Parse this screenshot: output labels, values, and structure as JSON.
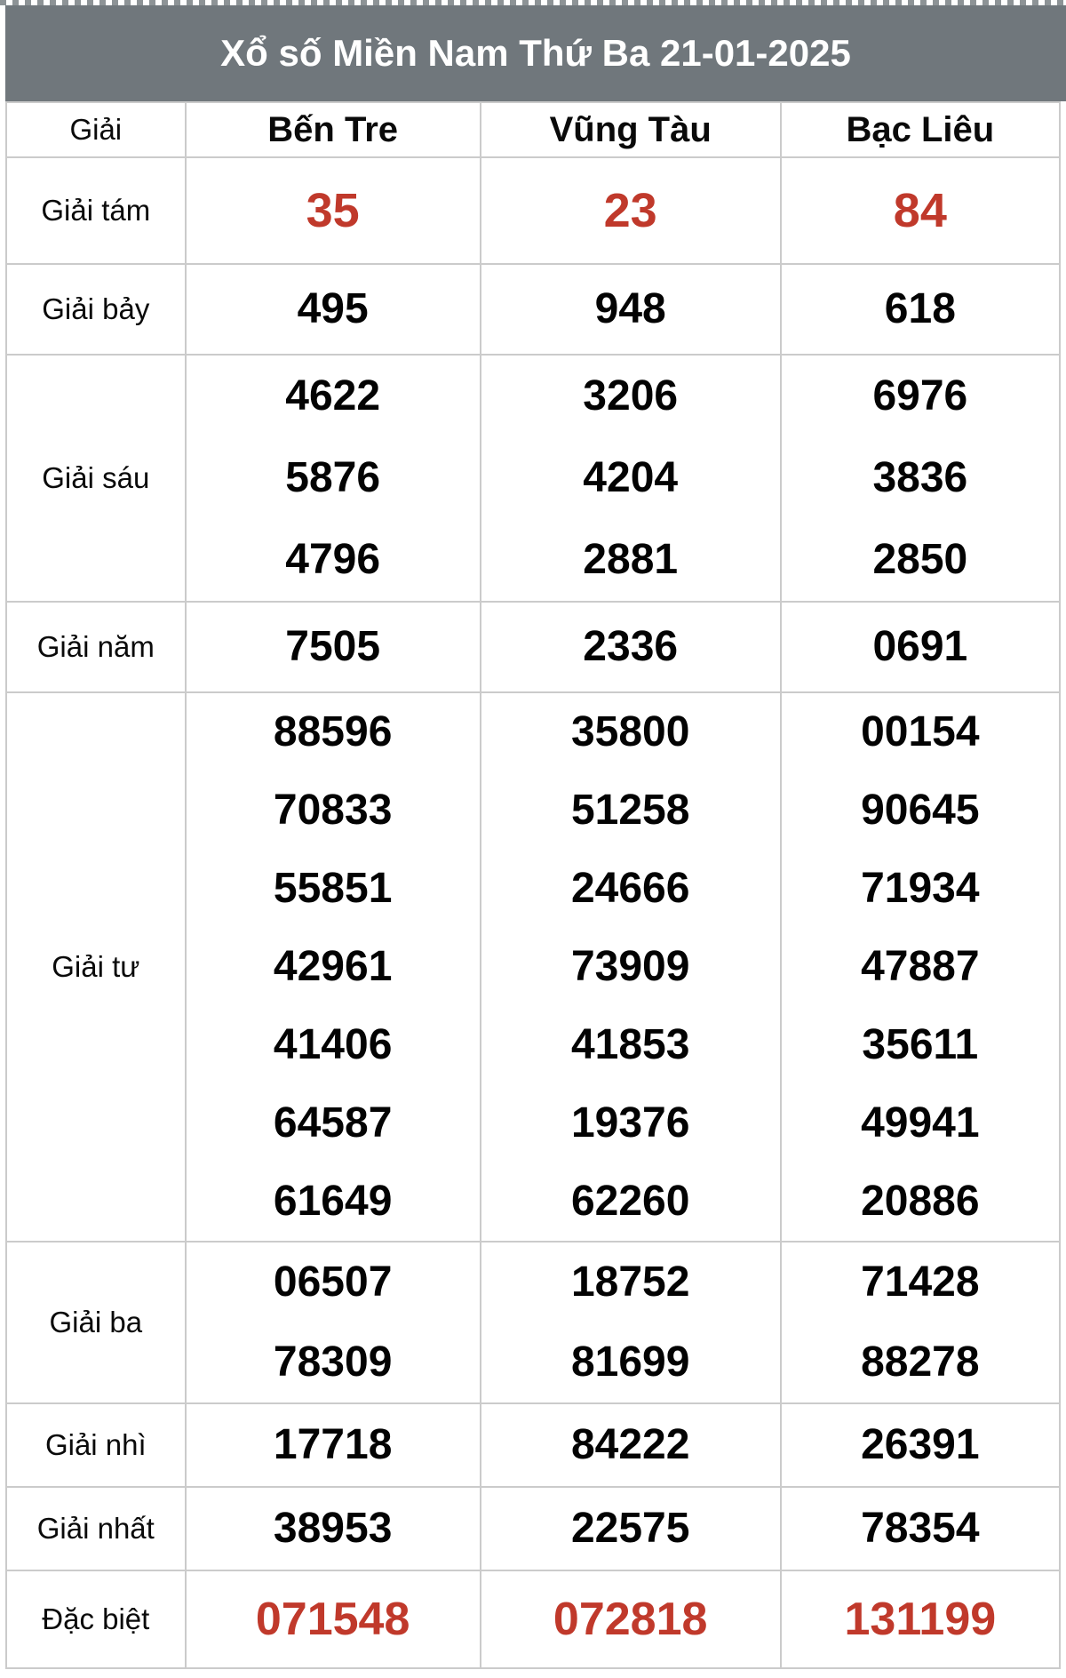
{
  "title": "Xổ số Miền Nam Thứ Ba 21-01-2025",
  "colors": {
    "header_bg": "#70777c",
    "highlight_red": "#c0392b",
    "border": "#cbcbcb"
  },
  "columns": [
    {
      "key": "giai",
      "label": "Giải"
    },
    {
      "key": "ben-tre",
      "label": "Bến Tre"
    },
    {
      "key": "vung-tau",
      "label": "Vũng Tàu"
    },
    {
      "key": "bac-lieu",
      "label": "Bạc Liêu"
    }
  ],
  "rows": [
    {
      "key": "tam",
      "label": "Giải tám",
      "red": true,
      "values": [
        [
          "35"
        ],
        [
          "23"
        ],
        [
          "84"
        ]
      ]
    },
    {
      "key": "bay",
      "label": "Giải bảy",
      "red": false,
      "values": [
        [
          "495"
        ],
        [
          "948"
        ],
        [
          "618"
        ]
      ]
    },
    {
      "key": "sau",
      "label": "Giải sáu",
      "red": false,
      "values": [
        [
          "4622",
          "5876",
          "4796"
        ],
        [
          "3206",
          "4204",
          "2881"
        ],
        [
          "6976",
          "3836",
          "2850"
        ]
      ]
    },
    {
      "key": "nam",
      "label": "Giải năm",
      "red": false,
      "values": [
        [
          "7505"
        ],
        [
          "2336"
        ],
        [
          "0691"
        ]
      ]
    },
    {
      "key": "tu",
      "label": "Giải tư",
      "red": false,
      "values": [
        [
          "88596",
          "70833",
          "55851",
          "42961",
          "41406",
          "64587",
          "61649"
        ],
        [
          "35800",
          "51258",
          "24666",
          "73909",
          "41853",
          "19376",
          "62260"
        ],
        [
          "00154",
          "90645",
          "71934",
          "47887",
          "35611",
          "49941",
          "20886"
        ]
      ]
    },
    {
      "key": "ba",
      "label": "Giải ba",
      "red": false,
      "values": [
        [
          "06507",
          "78309"
        ],
        [
          "18752",
          "81699"
        ],
        [
          "71428",
          "88278"
        ]
      ]
    },
    {
      "key": "nhi",
      "label": "Giải nhì",
      "red": false,
      "values": [
        [
          "17718"
        ],
        [
          "84222"
        ],
        [
          "26391"
        ]
      ]
    },
    {
      "key": "nhat",
      "label": "Giải nhất",
      "red": false,
      "values": [
        [
          "38953"
        ],
        [
          "22575"
        ],
        [
          "78354"
        ]
      ]
    },
    {
      "key": "db",
      "label": "Đặc biệt",
      "red": true,
      "values": [
        [
          "071548"
        ],
        [
          "072818"
        ],
        [
          "131199"
        ]
      ]
    }
  ]
}
